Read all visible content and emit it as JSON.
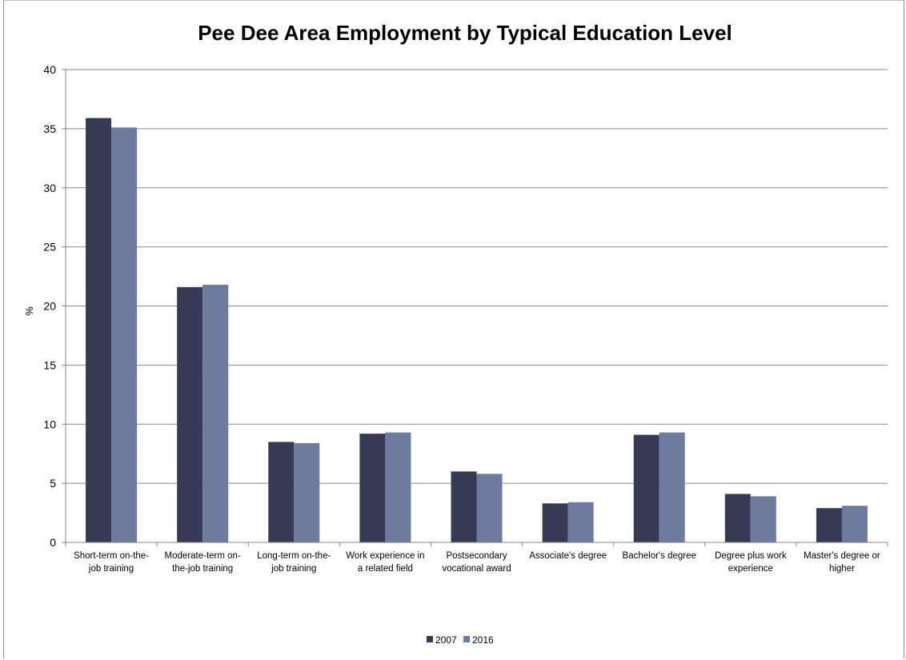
{
  "chart_data": {
    "type": "bar",
    "title": "Pee Dee Area Employment by Typical Education Level",
    "xlabel": "",
    "ylabel": "%",
    "ylim": [
      0,
      40
    ],
    "yticks": [
      0,
      5,
      10,
      15,
      20,
      25,
      30,
      35,
      40
    ],
    "grid": true,
    "legend_position": "bottom",
    "categories": [
      [
        "Short-term on-the-",
        "job training"
      ],
      [
        "Moderate-term on-",
        "the-job training"
      ],
      [
        "Long-term on-the-",
        "job training"
      ],
      [
        "Work experience in",
        "a related field"
      ],
      [
        "Postsecondary",
        "vocational award"
      ],
      [
        "Associate's degree"
      ],
      [
        "Bachelor's degree"
      ],
      [
        "Degree plus work",
        "experience"
      ],
      [
        "Master's degree or",
        "higher"
      ]
    ],
    "series": [
      {
        "name": "2007",
        "color": "#363a54",
        "values": [
          35.9,
          21.6,
          8.5,
          9.2,
          6.0,
          3.3,
          9.1,
          4.1,
          2.9
        ]
      },
      {
        "name": "2016",
        "color": "#6f7a9f",
        "values": [
          35.1,
          21.8,
          8.4,
          9.3,
          5.8,
          3.4,
          9.3,
          3.9,
          3.1
        ]
      }
    ]
  }
}
